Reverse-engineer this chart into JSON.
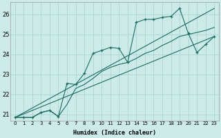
{
  "xlabel": "Humidex (Indice chaleur)",
  "bg_color": "#cceae7",
  "grid_color": "#aad4d0",
  "line_color": "#1a6b60",
  "xlim": [
    -0.5,
    23.5
  ],
  "ylim": [
    20.7,
    26.6
  ],
  "xticks": [
    0,
    1,
    2,
    3,
    4,
    5,
    6,
    7,
    8,
    9,
    10,
    11,
    12,
    13,
    14,
    15,
    16,
    17,
    18,
    19,
    20,
    21,
    22,
    23
  ],
  "yticks": [
    21,
    22,
    23,
    24,
    25,
    26
  ],
  "line1_x": [
    0,
    1,
    2,
    3,
    4,
    5,
    6,
    7,
    8,
    9,
    10,
    11,
    12,
    13,
    14,
    15,
    16,
    17,
    18,
    19,
    20,
    21,
    22,
    23
  ],
  "line1_y": [
    20.85,
    20.85,
    20.85,
    21.1,
    21.2,
    20.9,
    22.55,
    22.5,
    23.05,
    24.05,
    24.2,
    24.35,
    24.3,
    23.6,
    25.6,
    25.75,
    25.75,
    25.85,
    25.9,
    26.3,
    25.05,
    24.1,
    24.5,
    24.9
  ],
  "line2_x": [
    0,
    1,
    2,
    3,
    4,
    5,
    6,
    7,
    8,
    9,
    10,
    11,
    12,
    13,
    14,
    15,
    16,
    17,
    18,
    19,
    20,
    21,
    22,
    23
  ],
  "line2_y": [
    20.85,
    20.85,
    20.85,
    21.1,
    21.2,
    20.9,
    21.5,
    22.3,
    22.5,
    22.8,
    23.15,
    23.35,
    23.5,
    23.6,
    23.8,
    24.05,
    24.2,
    24.45,
    24.65,
    24.9,
    25.0,
    25.1,
    25.2,
    25.35
  ],
  "line3_x": [
    0,
    23
  ],
  "line3_y": [
    20.85,
    26.3
  ],
  "line4_x": [
    0,
    23
  ],
  "line4_y": [
    20.85,
    24.9
  ]
}
